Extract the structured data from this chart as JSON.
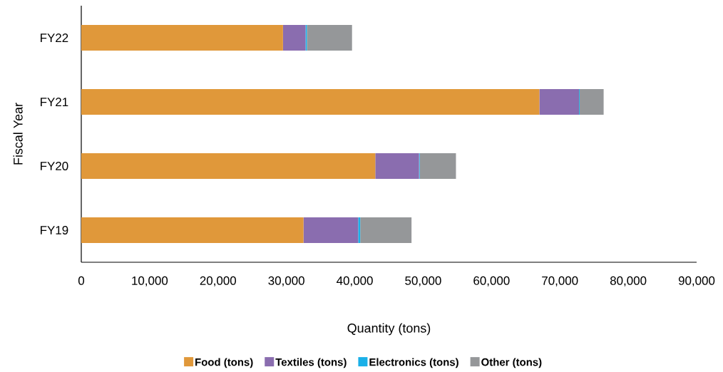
{
  "chart_data": {
    "type": "bar",
    "orientation": "horizontal",
    "stacked": true,
    "xlabel": "Quantity (tons)",
    "ylabel": "Fiscal Year",
    "categories": [
      "FY22",
      "FY21",
      "FY20",
      "FY19"
    ],
    "series": [
      {
        "name": "Food (tons)",
        "color": "#e0983a",
        "values": [
          29500,
          67000,
          43000,
          32500
        ]
      },
      {
        "name": "Textiles (tons)",
        "color": "#8a6daf",
        "values": [
          3300,
          5800,
          6400,
          8000
        ]
      },
      {
        "name": "Electronics (tons)",
        "color": "#1ab0e8",
        "values": [
          200,
          100,
          100,
          300
        ]
      },
      {
        "name": "Other (tons)",
        "color": "#959799",
        "values": [
          6600,
          3500,
          5300,
          7500
        ]
      }
    ],
    "xlim": [
      0,
      90000
    ],
    "xticks": [
      0,
      {
        "value": 10000,
        "label": "10,000"
      },
      {
        "value": 20000,
        "label": "20,000"
      },
      {
        "value": 30000,
        "label": "30,000"
      },
      {
        "value": 40000,
        "label": "40,000"
      },
      {
        "value": 50000,
        "label": "50,000"
      },
      {
        "value": 60000,
        "label": "60,000"
      },
      {
        "value": 70000,
        "label": "70,000"
      },
      {
        "value": 80000,
        "label": "80,000"
      },
      {
        "value": 90000,
        "label": "90,000"
      }
    ],
    "grid": false,
    "legend": "bottom"
  }
}
